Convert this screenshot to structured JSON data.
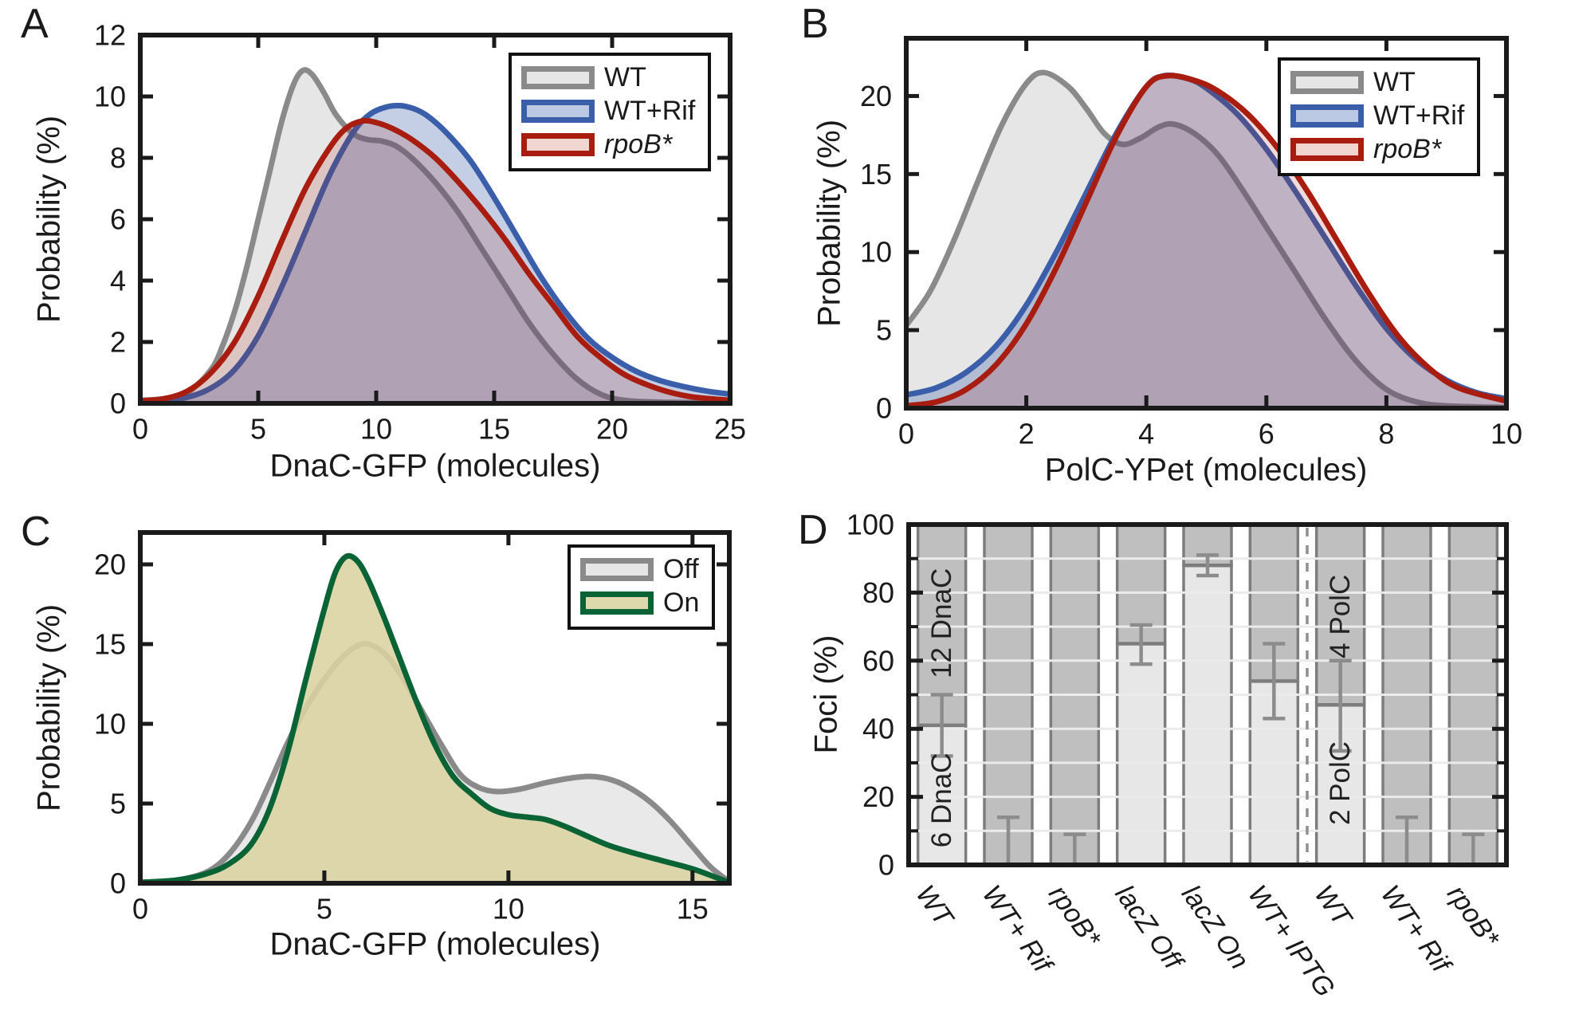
{
  "chart_data": [
    {
      "panel_label": "A",
      "type": "density",
      "xlabel": "DnaC-GFP (molecules)",
      "ylabel": "Probability (%)",
      "xlim": [
        0,
        25
      ],
      "ylim": [
        0,
        12
      ],
      "x_ticks": [
        0,
        5,
        10,
        15,
        20,
        25
      ],
      "y_ticks": [
        0,
        2,
        4,
        6,
        8,
        10,
        12
      ],
      "grid": false,
      "legend_position": "top-right",
      "series": [
        {
          "name": "WT",
          "italic": false,
          "line_color": "#8a8a8a",
          "fill_color": "#8f8f8f",
          "fill_opacity": 0.22,
          "legend_fill": "#e6e6e6",
          "x": [
            0,
            1,
            2,
            3,
            3.5,
            4,
            4.5,
            5,
            5.5,
            6,
            6.5,
            6.9,
            7.3,
            7.8,
            8.3,
            9,
            9.6,
            10.2,
            10.8,
            11.5,
            12.5,
            13.5,
            14.5,
            15.5,
            16.5,
            17.5,
            18.5,
            19.5,
            20.5,
            22,
            25
          ],
          "y": [
            0.1,
            0.15,
            0.35,
            1.1,
            1.9,
            3.0,
            4.4,
            6.0,
            7.6,
            9.2,
            10.4,
            10.85,
            10.7,
            10.1,
            9.4,
            8.8,
            8.6,
            8.55,
            8.4,
            8.0,
            7.2,
            6.2,
            5.0,
            3.8,
            2.6,
            1.6,
            0.8,
            0.3,
            0.1,
            0.04,
            0.02
          ]
        },
        {
          "name": "WT+Rif",
          "italic": false,
          "line_color": "#3a5ea9",
          "fill_color": "#3a5ea9",
          "fill_opacity": 0.3,
          "legend_fill": "#bcc9e4",
          "x": [
            0,
            1,
            2,
            3,
            4,
            5,
            6,
            7,
            8,
            9,
            9.7,
            10.4,
            11,
            11.6,
            12.2,
            13,
            14,
            15,
            16,
            17,
            18,
            19,
            20,
            21,
            22,
            23,
            24,
            25
          ],
          "y": [
            0.08,
            0.1,
            0.2,
            0.5,
            1.1,
            2.2,
            3.8,
            5.6,
            7.4,
            8.8,
            9.4,
            9.65,
            9.7,
            9.6,
            9.35,
            8.8,
            7.9,
            6.7,
            5.4,
            4.1,
            3.0,
            2.1,
            1.5,
            1.05,
            0.75,
            0.55,
            0.4,
            0.3
          ]
        },
        {
          "name": "rpoB*",
          "italic": true,
          "line_color": "#a91d10",
          "fill_color": "#a91d10",
          "fill_opacity": 0.16,
          "legend_fill": "#f1d5d1",
          "x": [
            0,
            1,
            2,
            3,
            4,
            5,
            6,
            7,
            8,
            8.7,
            9.4,
            10,
            10.7,
            11.5,
            12.5,
            13.5,
            14.5,
            15.5,
            16.5,
            17.5,
            18.5,
            19.5,
            20.5,
            21.5,
            22.5,
            23.5,
            25
          ],
          "y": [
            0.08,
            0.15,
            0.4,
            1.0,
            2.0,
            3.5,
            5.3,
            7.0,
            8.3,
            8.95,
            9.2,
            9.15,
            8.95,
            8.6,
            8.0,
            7.2,
            6.3,
            5.3,
            4.2,
            3.2,
            2.2,
            1.5,
            0.95,
            0.6,
            0.35,
            0.2,
            0.1
          ]
        }
      ]
    },
    {
      "panel_label": "B",
      "type": "density",
      "xlabel": "PolC-YPet (molecules)",
      "ylabel": "Probability (%)",
      "xlim": [
        0,
        10
      ],
      "ylim": [
        0,
        23.7
      ],
      "x_ticks": [
        0,
        2,
        4,
        6,
        8,
        10
      ],
      "y_ticks": [
        0,
        5,
        10,
        15,
        20
      ],
      "grid": false,
      "legend_position": "top-right",
      "series": [
        {
          "name": "WT",
          "italic": false,
          "line_color": "#8a8a8a",
          "fill_color": "#8f8f8f",
          "fill_opacity": 0.22,
          "legend_fill": "#e6e6e6",
          "x": [
            0,
            0.4,
            0.8,
            1.2,
            1.6,
            2.0,
            2.3,
            2.7,
            3.0,
            3.3,
            3.6,
            3.9,
            4.2,
            4.45,
            4.8,
            5.2,
            5.6,
            6.0,
            6.5,
            7.0,
            7.5,
            8.0,
            8.5,
            9.0,
            10
          ],
          "y": [
            5.3,
            7.5,
            10.8,
            14.6,
            18.2,
            20.8,
            21.5,
            20.6,
            19.2,
            17.6,
            16.9,
            17.3,
            18.0,
            18.2,
            17.6,
            16.2,
            14.0,
            11.6,
            8.6,
            5.6,
            3.0,
            1.2,
            0.4,
            0.15,
            0.05
          ]
        },
        {
          "name": "WT+Rif",
          "italic": false,
          "line_color": "#3a5ea9",
          "fill_color": "#3a5ea9",
          "fill_opacity": 0.3,
          "legend_fill": "#bcc9e4",
          "x": [
            0,
            0.5,
            1,
            1.5,
            2,
            2.5,
            3,
            3.5,
            4,
            4.3,
            4.7,
            5,
            5.5,
            6,
            6.5,
            7,
            7.5,
            8,
            8.5,
            9,
            9.5,
            10
          ],
          "y": [
            0.85,
            1.3,
            2.3,
            4.0,
            6.6,
            10.0,
            13.8,
            17.6,
            20.6,
            21.3,
            21.1,
            20.5,
            18.9,
            16.6,
            13.8,
            10.8,
            7.8,
            5.1,
            3.1,
            1.8,
            1.0,
            0.6
          ]
        },
        {
          "name": "rpoB*",
          "italic": true,
          "line_color": "#a91d10",
          "fill_color": "#a91d10",
          "fill_opacity": 0.16,
          "legend_fill": "#f1d5d1",
          "x": [
            0,
            0.5,
            1,
            1.5,
            2,
            2.5,
            3,
            3.5,
            4,
            4.35,
            4.8,
            5.2,
            5.7,
            6.2,
            6.7,
            7.2,
            7.7,
            8.2,
            8.7,
            9.2,
            10
          ],
          "y": [
            0.15,
            0.4,
            1.2,
            2.8,
            5.4,
            9.0,
            13.2,
            17.4,
            20.6,
            21.3,
            21.0,
            20.3,
            18.8,
            16.6,
            13.8,
            10.6,
            7.4,
            4.6,
            2.6,
            1.3,
            0.45
          ]
        }
      ]
    },
    {
      "panel_label": "C",
      "type": "density",
      "xlabel": "DnaC-GFP (molecules)",
      "ylabel": "Probability (%)",
      "xlim": [
        0,
        16
      ],
      "ylim": [
        0,
        22
      ],
      "x_ticks": [
        0,
        5,
        10,
        15
      ],
      "y_ticks": [
        0,
        5,
        10,
        15,
        20
      ],
      "grid": false,
      "legend_position": "top-right",
      "series": [
        {
          "name": "Off",
          "italic": false,
          "line_color": "#8a8a8a",
          "fill_color": "#8f8f8f",
          "fill_opacity": 0.2,
          "legend_fill": "#e6e6e6",
          "x": [
            0,
            1,
            1.8,
            2.4,
            3,
            3.5,
            4,
            4.5,
            5,
            5.5,
            6,
            6.4,
            6.8,
            7.2,
            7.7,
            8.2,
            8.7,
            9.2,
            9.7,
            10.3,
            11,
            11.7,
            12.2,
            12.7,
            13.2,
            13.8,
            14.4,
            15,
            15.5,
            16
          ],
          "y": [
            0.05,
            0.2,
            0.7,
            1.8,
            3.8,
            6.2,
            8.8,
            11.0,
            12.8,
            14.2,
            15.0,
            14.8,
            14.0,
            12.6,
            10.6,
            8.6,
            6.8,
            6.0,
            5.75,
            5.9,
            6.3,
            6.6,
            6.7,
            6.55,
            6.1,
            5.2,
            3.9,
            2.3,
            1.0,
            0.1
          ]
        },
        {
          "name": "On",
          "italic": false,
          "line_color": "#0a6334",
          "fill_color": "#d9d3a0",
          "fill_opacity": 0.88,
          "legend_fill": "#ded8ad",
          "x": [
            0,
            1,
            1.8,
            2.4,
            3,
            3.5,
            4,
            4.5,
            5,
            5.3,
            5.6,
            5.9,
            6.2,
            6.6,
            7,
            7.5,
            8,
            8.5,
            9,
            9.5,
            10,
            10.5,
            11,
            11.5,
            12,
            12.7,
            13.4,
            14.2,
            15,
            15.6,
            16
          ],
          "y": [
            0.05,
            0.2,
            0.6,
            1.2,
            2.4,
            4.6,
            8.2,
            12.8,
            17.2,
            19.5,
            20.5,
            20.2,
            19.0,
            16.8,
            14.4,
            11.4,
            8.7,
            6.7,
            5.6,
            4.7,
            4.3,
            4.15,
            4.0,
            3.6,
            3.1,
            2.4,
            1.9,
            1.4,
            0.9,
            0.4,
            0.05
          ]
        }
      ]
    },
    {
      "panel_label": "D",
      "type": "stacked-bar",
      "ylabel": "Foci (%)",
      "ylim": [
        0,
        100
      ],
      "y_major_ticks": [
        0,
        20,
        40,
        60,
        80,
        100
      ],
      "y_minor_ticks": [
        10,
        30,
        50,
        70,
        90
      ],
      "grid": true,
      "categories": [
        "WT",
        "WT+ Rif",
        "rpoB*",
        "lacZ Off",
        "lacZ On",
        "WT+ IPTG",
        "WT",
        "WT+ Rif",
        "rpoB*"
      ],
      "values": [
        41,
        0,
        0,
        65,
        88,
        54,
        47,
        0,
        0
      ],
      "errors": [
        [
          32,
          50
        ],
        [
          0,
          14
        ],
        [
          0,
          9
        ],
        [
          59,
          70.5
        ],
        [
          85,
          91
        ],
        [
          43,
          65
        ],
        [
          33.5,
          60
        ],
        [
          0,
          14
        ],
        [
          0,
          9
        ]
      ],
      "separator_after": 5,
      "annotations": [
        {
          "bar": 0,
          "text": "6 DnaC",
          "center_pct": 19
        },
        {
          "bar": 0,
          "text": "12 DnaC",
          "center_pct": 71
        },
        {
          "bar": 6,
          "text": "2 PolC",
          "center_pct": 24
        },
        {
          "bar": 6,
          "text": "4 PolC",
          "center_pct": 73
        }
      ],
      "bar_light_color": "#e7e7e7",
      "bar_dark_color": "#bfbfbf",
      "bar_edge_color": "#7d7d7d",
      "error_color": "#8c8c8c",
      "grid_color": "#ebebeb",
      "separator_color": "#8f8f8f",
      "axis_color": "#1a1a1a"
    }
  ]
}
